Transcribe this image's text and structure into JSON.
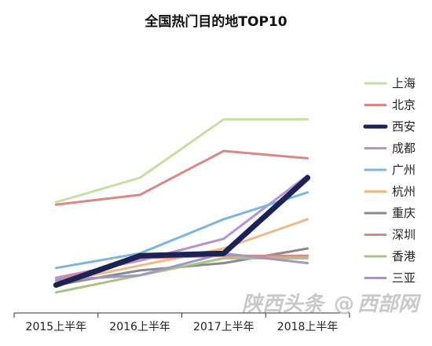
{
  "chart_data": {
    "type": "line",
    "title": "全国热门目的地TOP10",
    "xlabel": "",
    "ylabel": "",
    "categories": [
      "2015上半年",
      "2016上半年",
      "2017上半年",
      "2018上半年"
    ],
    "ylim": [
      0,
      10
    ],
    "grid": false,
    "legend": "right",
    "series": [
      {
        "name": "上海",
        "color": "#c5e0a3",
        "values": [
          5.9,
          6.9,
          9.3,
          9.3
        ]
      },
      {
        "name": "北京",
        "color": "#d98886",
        "values": [
          5.8,
          6.2,
          8.0,
          7.7
        ]
      },
      {
        "name": "西安",
        "color": "#1a2256",
        "values": [
          2.5,
          3.7,
          3.8,
          6.9
        ]
      },
      {
        "name": "成都",
        "color": "#b793d2",
        "values": [
          2.8,
          3.5,
          4.4,
          7.0
        ]
      },
      {
        "name": "广州",
        "color": "#7fb5df",
        "values": [
          3.2,
          3.8,
          5.2,
          6.3
        ]
      },
      {
        "name": "杭州",
        "color": "#f0b986",
        "values": [
          2.6,
          3.3,
          4.0,
          5.2
        ]
      },
      {
        "name": "重庆",
        "color": "#8a8a8a",
        "values": [
          2.5,
          3.1,
          3.4,
          4.0
        ]
      },
      {
        "name": "深圳",
        "color": "#d98886",
        "values": [
          2.7,
          3.6,
          3.7,
          3.7
        ]
      },
      {
        "name": "香港",
        "color": "#a8c484",
        "values": [
          2.2,
          2.9,
          3.6,
          3.6
        ]
      },
      {
        "name": "三亚",
        "color": "#a495c4",
        "values": [
          2.7,
          2.9,
          3.8,
          3.4
        ]
      }
    ]
  },
  "watermark": {
    "left": "陕西头条",
    "separator": "@",
    "right": "西部网"
  }
}
